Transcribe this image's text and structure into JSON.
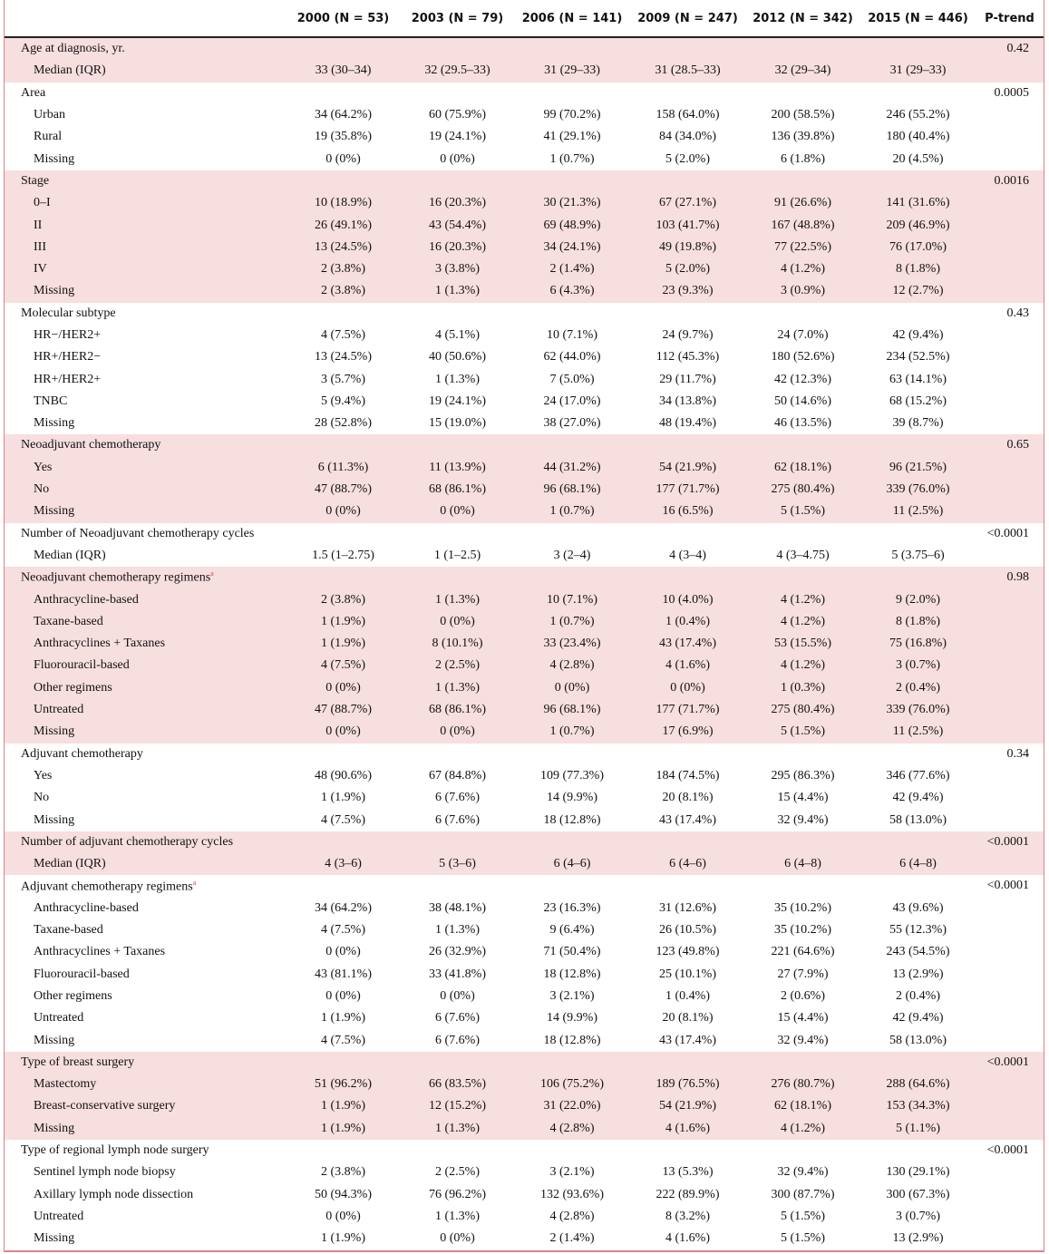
{
  "columns": [
    "2000 (N = 53)",
    "2003 (N = 79)",
    "2006 (N = 141)",
    "2009 (N = 247)",
    "2012 (N = 342)",
    "2015 (N = 446)"
  ],
  "p_header": "P-trend",
  "groups": [
    {
      "label": "Age at diagnosis, yr.",
      "p": "0.42",
      "rows": [
        {
          "label": "Median (IQR)",
          "cells": [
            "33 (30–34)",
            "32 (29.5–33)",
            "31 (29–33)",
            "31 (28.5–33)",
            "32 (29–34)",
            "31 (29–33)"
          ]
        }
      ]
    },
    {
      "label": "Area",
      "p": "0.0005",
      "rows": [
        {
          "label": "Urban",
          "cells": [
            "34 (64.2%)",
            "60 (75.9%)",
            "99 (70.2%)",
            "158 (64.0%)",
            "200 (58.5%)",
            "246 (55.2%)"
          ]
        },
        {
          "label": "Rural",
          "cells": [
            "19 (35.8%)",
            "19 (24.1%)",
            "41 (29.1%)",
            "84 (34.0%)",
            "136 (39.8%)",
            "180 (40.4%)"
          ]
        },
        {
          "label": "Missing",
          "cells": [
            "0 (0%)",
            "0 (0%)",
            "1 (0.7%)",
            "5 (2.0%)",
            "6 (1.8%)",
            "20 (4.5%)"
          ]
        }
      ]
    },
    {
      "label": "Stage",
      "p": "0.0016",
      "rows": [
        {
          "label": "0–I",
          "cells": [
            "10 (18.9%)",
            "16 (20.3%)",
            "30 (21.3%)",
            "67 (27.1%)",
            "91 (26.6%)",
            "141 (31.6%)"
          ]
        },
        {
          "label": "II",
          "cells": [
            "26 (49.1%)",
            "43 (54.4%)",
            "69 (48.9%)",
            "103 (41.7%)",
            "167 (48.8%)",
            "209 (46.9%)"
          ]
        },
        {
          "label": "III",
          "cells": [
            "13 (24.5%)",
            "16 (20.3%)",
            "34 (24.1%)",
            "49 (19.8%)",
            "77 (22.5%)",
            "76 (17.0%)"
          ]
        },
        {
          "label": "IV",
          "cells": [
            "2 (3.8%)",
            "3 (3.8%)",
            "2 (1.4%)",
            "5 (2.0%)",
            "4 (1.2%)",
            "8 (1.8%)"
          ]
        },
        {
          "label": "Missing",
          "cells": [
            "2 (3.8%)",
            "1 (1.3%)",
            "6 (4.3%)",
            "23 (9.3%)",
            "3 (0.9%)",
            "12 (2.7%)"
          ]
        }
      ]
    },
    {
      "label": "Molecular subtype",
      "p": "0.43",
      "rows": [
        {
          "label": "HR−/HER2+",
          "cells": [
            "4 (7.5%)",
            "4 (5.1%)",
            "10 (7.1%)",
            "24 (9.7%)",
            "24 (7.0%)",
            "42 (9.4%)"
          ]
        },
        {
          "label": "HR+/HER2−",
          "cells": [
            "13 (24.5%)",
            "40 (50.6%)",
            "62 (44.0%)",
            "112 (45.3%)",
            "180 (52.6%)",
            "234 (52.5%)"
          ]
        },
        {
          "label": "HR+/HER2+",
          "cells": [
            "3 (5.7%)",
            "1 (1.3%)",
            "7 (5.0%)",
            "29 (11.7%)",
            "42 (12.3%)",
            "63 (14.1%)"
          ]
        },
        {
          "label": "TNBC",
          "cells": [
            "5 (9.4%)",
            "19 (24.1%)",
            "24 (17.0%)",
            "34 (13.8%)",
            "50 (14.6%)",
            "68 (15.2%)"
          ]
        },
        {
          "label": "Missing",
          "cells": [
            "28 (52.8%)",
            "15 (19.0%)",
            "38 (27.0%)",
            "48 (19.4%)",
            "46 (13.5%)",
            "39 (8.7%)"
          ]
        }
      ]
    },
    {
      "label": "Neoadjuvant chemotherapy",
      "p": "0.65",
      "rows": [
        {
          "label": "Yes",
          "cells": [
            "6 (11.3%)",
            "11 (13.9%)",
            "44 (31.2%)",
            "54 (21.9%)",
            "62 (18.1%)",
            "96 (21.5%)"
          ]
        },
        {
          "label": "No",
          "cells": [
            "47 (88.7%)",
            "68 (86.1%)",
            "96 (68.1%)",
            "177 (71.7%)",
            "275 (80.4%)",
            "339 (76.0%)"
          ]
        },
        {
          "label": "Missing",
          "cells": [
            "0 (0%)",
            "0 (0%)",
            "1 (0.7%)",
            "16 (6.5%)",
            "5 (1.5%)",
            "11 (2.5%)"
          ]
        }
      ]
    },
    {
      "label": "Number of Neoadjuvant chemotherapy cycles",
      "p": "<0.0001",
      "rows": [
        {
          "label": "Median (IQR)",
          "cells": [
            "1.5 (1–2.75)",
            "1 (1–2.5)",
            "3 (2–4)",
            "4 (3–4)",
            "4 (3–4.75)",
            "5 (3.75–6)"
          ]
        }
      ]
    },
    {
      "label": "Neoadjuvant chemotherapy regimens",
      "note": "a",
      "p": "0.98",
      "rows": [
        {
          "label": "Anthracycline-based",
          "cells": [
            "2 (3.8%)",
            "1 (1.3%)",
            "10 (7.1%)",
            "10 (4.0%)",
            "4 (1.2%)",
            "9 (2.0%)"
          ]
        },
        {
          "label": "Taxane-based",
          "cells": [
            "1 (1.9%)",
            "0 (0%)",
            "1 (0.7%)",
            "1 (0.4%)",
            "4 (1.2%)",
            "8 (1.8%)"
          ]
        },
        {
          "label": "Anthracyclines + Taxanes",
          "cells": [
            "1 (1.9%)",
            "8 (10.1%)",
            "33 (23.4%)",
            "43 (17.4%)",
            "53 (15.5%)",
            "75 (16.8%)"
          ]
        },
        {
          "label": "Fluorouracil-based",
          "cells": [
            "4 (7.5%)",
            "2 (2.5%)",
            "4 (2.8%)",
            "4 (1.6%)",
            "4 (1.2%)",
            "3 (0.7%)"
          ]
        },
        {
          "label": "Other regimens",
          "cells": [
            "0 (0%)",
            "1 (1.3%)",
            "0 (0%)",
            "0 (0%)",
            "1 (0.3%)",
            "2 (0.4%)"
          ]
        },
        {
          "label": "Untreated",
          "cells": [
            "47 (88.7%)",
            "68 (86.1%)",
            "96 (68.1%)",
            "177 (71.7%)",
            "275 (80.4%)",
            "339 (76.0%)"
          ]
        },
        {
          "label": "Missing",
          "cells": [
            "0 (0%)",
            "0 (0%)",
            "1 (0.7%)",
            "17 (6.9%)",
            "5 (1.5%)",
            "11 (2.5%)"
          ]
        }
      ]
    },
    {
      "label": "Adjuvant chemotherapy",
      "p": "0.34",
      "rows": [
        {
          "label": "Yes",
          "cells": [
            "48 (90.6%)",
            "67 (84.8%)",
            "109 (77.3%)",
            "184 (74.5%)",
            "295 (86.3%)",
            "346 (77.6%)"
          ]
        },
        {
          "label": "No",
          "cells": [
            "1 (1.9%)",
            "6 (7.6%)",
            "14 (9.9%)",
            "20 (8.1%)",
            "15 (4.4%)",
            "42 (9.4%)"
          ]
        },
        {
          "label": "Missing",
          "cells": [
            "4 (7.5%)",
            "6 (7.6%)",
            "18 (12.8%)",
            "43 (17.4%)",
            "32 (9.4%)",
            "58 (13.0%)"
          ]
        }
      ]
    },
    {
      "label": "Number of adjuvant chemotherapy cycles",
      "p": "<0.0001",
      "rows": [
        {
          "label": "Median (IQR)",
          "cells": [
            "4 (3–6)",
            "5 (3–6)",
            "6 (4–6)",
            "6 (4–6)",
            "6 (4–8)",
            "6 (4–8)"
          ]
        }
      ]
    },
    {
      "label": "Adjuvant chemotherapy regimens",
      "note": "a",
      "p": "<0.0001",
      "rows": [
        {
          "label": "Anthracycline-based",
          "cells": [
            "34 (64.2%)",
            "38 (48.1%)",
            "23 (16.3%)",
            "31 (12.6%)",
            "35 (10.2%)",
            "43 (9.6%)"
          ]
        },
        {
          "label": "Taxane-based",
          "cells": [
            "4 (7.5%)",
            "1 (1.3%)",
            "9 (6.4%)",
            "26 (10.5%)",
            "35 (10.2%)",
            "55 (12.3%)"
          ]
        },
        {
          "label": "Anthracyclines + Taxanes",
          "cells": [
            "0 (0%)",
            "26 (32.9%)",
            "71 (50.4%)",
            "123 (49.8%)",
            "221 (64.6%)",
            "243 (54.5%)"
          ]
        },
        {
          "label": "Fluorouracil-based",
          "cells": [
            "43 (81.1%)",
            "33 (41.8%)",
            "18 (12.8%)",
            "25 (10.1%)",
            "27 (7.9%)",
            "13 (2.9%)"
          ]
        },
        {
          "label": "Other regimens",
          "cells": [
            "0 (0%)",
            "0 (0%)",
            "3 (2.1%)",
            "1 (0.4%)",
            "2 (0.6%)",
            "2 (0.4%)"
          ]
        },
        {
          "label": "Untreated",
          "cells": [
            "1 (1.9%)",
            "6 (7.6%)",
            "14 (9.9%)",
            "20 (8.1%)",
            "15 (4.4%)",
            "42 (9.4%)"
          ]
        },
        {
          "label": "Missing",
          "cells": [
            "4 (7.5%)",
            "6 (7.6%)",
            "18 (12.8%)",
            "43 (17.4%)",
            "32 (9.4%)",
            "58 (13.0%)"
          ]
        }
      ]
    },
    {
      "label": "Type of breast surgery",
      "p": "<0.0001",
      "rows": [
        {
          "label": "Mastectomy",
          "cells": [
            "51 (96.2%)",
            "66 (83.5%)",
            "106 (75.2%)",
            "189 (76.5%)",
            "276 (80.7%)",
            "288 (64.6%)"
          ]
        },
        {
          "label": "Breast-conservative surgery",
          "cells": [
            "1 (1.9%)",
            "12 (15.2%)",
            "31 (22.0%)",
            "54 (21.9%)",
            "62 (18.1%)",
            "153 (34.3%)"
          ]
        },
        {
          "label": "Missing",
          "cells": [
            "1 (1.9%)",
            "1 (1.3%)",
            "4 (2.8%)",
            "4 (1.6%)",
            "4 (1.2%)",
            "5 (1.1%)"
          ]
        }
      ]
    },
    {
      "label": "Type of regional lymph node surgery",
      "p": "<0.0001",
      "rows": [
        {
          "label": "Sentinel lymph node biopsy",
          "cells": [
            "2 (3.8%)",
            "2 (2.5%)",
            "3 (2.1%)",
            "13 (5.3%)",
            "32 (9.4%)",
            "130 (29.1%)"
          ]
        },
        {
          "label": "Axillary lymph node dissection",
          "cells": [
            "50 (94.3%)",
            "76 (96.2%)",
            "132 (93.6%)",
            "222 (89.9%)",
            "300 (87.7%)",
            "300 (67.3%)"
          ]
        },
        {
          "label": "Untreated",
          "cells": [
            "0 (0%)",
            "1 (1.3%)",
            "4 (2.8%)",
            "8 (3.2%)",
            "5 (1.5%)",
            "3 (0.7%)"
          ]
        },
        {
          "label": "Missing",
          "cells": [
            "1 (1.9%)",
            "0 (0%)",
            "2 (1.4%)",
            "4 (1.6%)",
            "5 (1.5%)",
            "13 (2.9%)"
          ]
        }
      ]
    }
  ]
}
